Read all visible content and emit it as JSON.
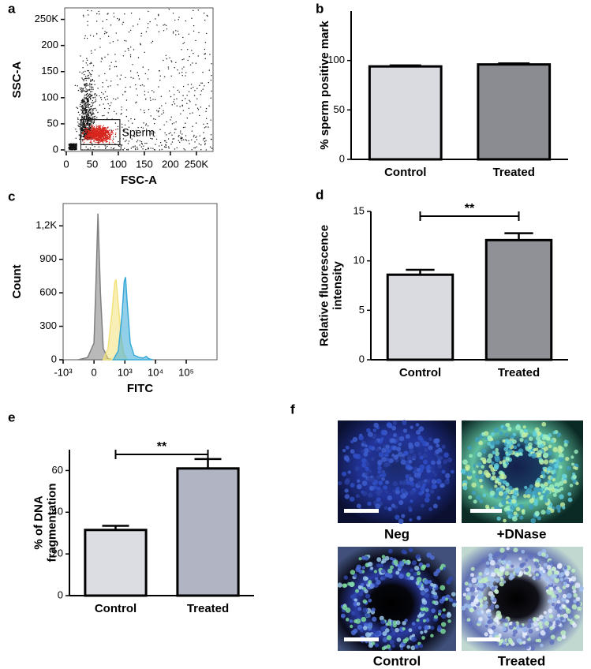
{
  "chart_data": [
    {
      "type": "scatter",
      "panel": "a",
      "xlabel": "FSC-A",
      "ylabel": "SSC-A",
      "gate_label": "Sperm",
      "xlim": [
        -3000,
        282000
      ],
      "ylim": [
        -3000,
        272000
      ],
      "xticks": [
        0,
        {
          "value": 50000,
          "label": "50"
        },
        {
          "value": 100000,
          "label": "100"
        },
        {
          "value": 150000,
          "label": "150"
        },
        {
          "value": 200000,
          "label": "200"
        },
        {
          "value": 250000,
          "label": "250K"
        }
      ],
      "yticks": [
        0,
        {
          "value": 50000,
          "label": "50"
        },
        {
          "value": 100000,
          "label": "100"
        },
        {
          "value": 150000,
          "label": "150"
        },
        {
          "value": 200000,
          "label": "200"
        },
        {
          "value": 250000,
          "label": "250K"
        }
      ]
    },
    {
      "type": "bar",
      "panel": "b",
      "ylabel": [
        "% sperm positive mark"
      ],
      "categories": [
        "Control",
        "Treated"
      ],
      "values": [
        94,
        96
      ],
      "errors": [
        1,
        1
      ],
      "colors": [
        "#d9dbe0",
        "#8a8c91"
      ],
      "ylim": [
        0,
        150
      ],
      "yticks": [
        0,
        50,
        100
      ]
    },
    {
      "type": "area",
      "panel": "c",
      "xlabel": "FITC",
      "ylabel": "Count",
      "xscale": "biexponential",
      "xlim": [
        -1000,
        1000000
      ],
      "ylim": [
        0,
        1400
      ],
      "xticks": [
        {
          "value": -1000,
          "label": "-10³"
        },
        0,
        {
          "value": 1000,
          "label": "10³"
        },
        {
          "value": 10000,
          "label": "10⁴"
        },
        {
          "value": 100000,
          "label": "10⁵"
        }
      ],
      "yticks": [
        0,
        300,
        600,
        900,
        {
          "value": 1200,
          "label": "1,2K"
        }
      ],
      "series": [
        {
          "color": "#7f7f80",
          "x": [
            -300,
            -100,
            0,
            30,
            60,
            100,
            150,
            250,
            400
          ],
          "values": [
            0,
            20,
            150,
            700,
            1310,
            600,
            100,
            10,
            0
          ]
        },
        {
          "color": "#f3e27a",
          "x": [
            150,
            250,
            350,
            450,
            500,
            600,
            750,
            900,
            1200
          ],
          "values": [
            0,
            100,
            400,
            690,
            720,
            500,
            200,
            60,
            0
          ]
        },
        {
          "color": "#39a9d8",
          "x": [
            400,
            600,
            800,
            950,
            1050,
            1200,
            1500,
            2000,
            3000,
            4000,
            5000,
            6000,
            8000
          ],
          "values": [
            0,
            80,
            400,
            700,
            740,
            500,
            150,
            40,
            20,
            15,
            30,
            10,
            0
          ]
        }
      ]
    },
    {
      "type": "bar",
      "panel": "d",
      "ylabel": [
        "Relative fluorescence",
        "intensity"
      ],
      "categories": [
        "Control",
        "Treated"
      ],
      "values": [
        8.6,
        12.1
      ],
      "errors": [
        0.5,
        0.7
      ],
      "colors": [
        "#d9dbe0",
        "#8f9196"
      ],
      "ylim": [
        0,
        15
      ],
      "yticks": [
        0,
        5,
        10,
        15
      ],
      "significance": "**"
    },
    {
      "type": "bar",
      "panel": "e",
      "ylabel": [
        "% of DNA",
        "fragmentation"
      ],
      "categories": [
        "Control",
        "Treated"
      ],
      "values": [
        31.5,
        61
      ],
      "errors": [
        2,
        4.5
      ],
      "colors": [
        "#dcdde2",
        "#b1b4c3"
      ],
      "ylim": [
        0,
        70
      ],
      "yticks": [
        0,
        20,
        40,
        60
      ],
      "significance": "**"
    }
  ],
  "figure_f": {
    "panel": "f",
    "images": [
      {
        "label": "Neg"
      },
      {
        "label": "+DNase"
      },
      {
        "label": "Control"
      },
      {
        "label": "Treated"
      }
    ]
  }
}
